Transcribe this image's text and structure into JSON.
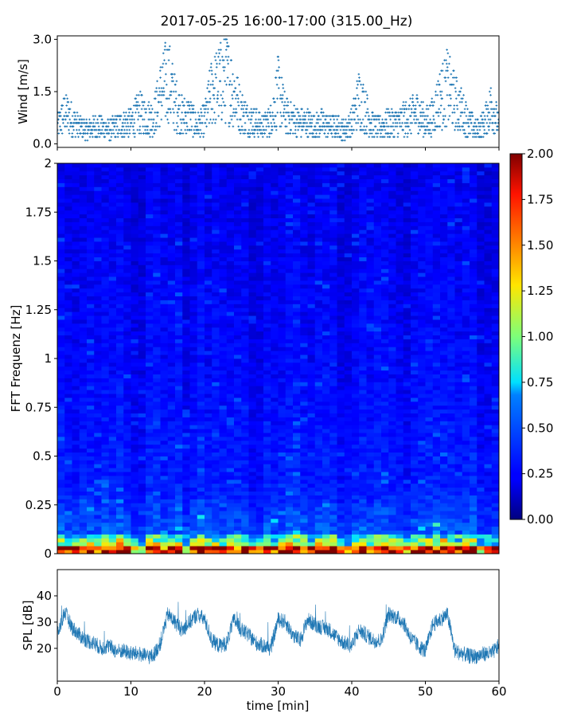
{
  "title": "2017-05-25 16:00-17:00 (315.00_Hz)",
  "xlabel": "time [min]",
  "chart_data": [
    {
      "id": "wind",
      "type": "scatter",
      "ylabel": "Wind [m/s]",
      "xlim": [
        0,
        60
      ],
      "ylim": [
        -0.1,
        3.1
      ],
      "yticks": [
        "0.0",
        "1.5",
        "3.0"
      ],
      "ytick_values": [
        0.0,
        1.5,
        3.0
      ],
      "color": "#1f77b4",
      "trend": {
        "x": [
          0,
          1,
          2,
          3,
          4,
          5,
          6,
          7,
          8,
          9,
          10,
          11,
          12,
          13,
          14,
          15,
          16,
          17,
          18,
          19,
          20,
          21,
          22,
          23,
          24,
          25,
          26,
          27,
          28,
          29,
          30,
          31,
          32,
          33,
          34,
          35,
          36,
          37,
          38,
          39,
          40,
          41,
          42,
          43,
          44,
          45,
          46,
          47,
          48,
          49,
          50,
          51,
          52,
          53,
          54,
          55,
          56,
          57,
          58,
          59,
          60
        ],
        "y": [
          0.5,
          0.9,
          0.7,
          0.5,
          0.4,
          0.5,
          0.5,
          0.4,
          0.5,
          0.6,
          0.6,
          0.9,
          0.8,
          0.7,
          1.4,
          1.9,
          1.2,
          0.8,
          0.8,
          0.5,
          0.7,
          1.5,
          1.7,
          1.9,
          1.5,
          0.9,
          0.7,
          0.6,
          0.5,
          0.7,
          1.5,
          0.8,
          0.7,
          0.6,
          0.6,
          0.5,
          0.6,
          0.5,
          0.5,
          0.4,
          0.6,
          1.3,
          0.9,
          0.5,
          0.5,
          0.6,
          0.6,
          0.7,
          0.8,
          0.9,
          0.6,
          0.8,
          1.3,
          1.6,
          1.2,
          0.9,
          0.6,
          0.4,
          0.6,
          1.1,
          0.5
        ]
      }
    },
    {
      "id": "spectrogram",
      "type": "heatmap",
      "ylabel": "FFT Frequenz [Hz]",
      "xlim": [
        0,
        60
      ],
      "ylim": [
        0,
        2
      ],
      "yticks": [
        "0",
        "0.25",
        "0.5",
        "0.75",
        "1",
        "1.25",
        "1.5",
        "1.75",
        "2"
      ],
      "ytick_values": [
        0,
        0.25,
        0.5,
        0.75,
        1,
        1.25,
        1.5,
        1.75,
        2
      ],
      "colormap": "jet",
      "colorbar": {
        "range": [
          0,
          2
        ],
        "ticks": [
          "0.00",
          "0.25",
          "0.50",
          "0.75",
          "1.00",
          "1.25",
          "1.50",
          "1.75",
          "2.00"
        ],
        "tick_values": [
          0,
          0.25,
          0.5,
          0.75,
          1,
          1.25,
          1.5,
          1.75,
          2
        ]
      }
    },
    {
      "id": "spl",
      "type": "line",
      "ylabel": "SPL [dB]",
      "xlim": [
        0,
        60
      ],
      "ylim": [
        7.5,
        50
      ],
      "yticks": [
        "20",
        "30",
        "40"
      ],
      "ytick_values": [
        20,
        30,
        40
      ],
      "xticks": [
        "0",
        "10",
        "20",
        "30",
        "40",
        "50",
        "60"
      ],
      "xtick_values": [
        0,
        10,
        20,
        30,
        40,
        50,
        60
      ],
      "color": "#1f77b4",
      "x": [
        0,
        1,
        2,
        3,
        4,
        5,
        6,
        7,
        8,
        9,
        10,
        11,
        12,
        13,
        14,
        15,
        16,
        17,
        18,
        19,
        20,
        21,
        22,
        23,
        24,
        25,
        26,
        27,
        28,
        29,
        30,
        31,
        32,
        33,
        34,
        35,
        36,
        37,
        38,
        39,
        40,
        41,
        42,
        43,
        44,
        45,
        46,
        47,
        48,
        49,
        50,
        51,
        52,
        53,
        54,
        55,
        56,
        57,
        58,
        59,
        60
      ],
      "y": [
        25,
        34,
        28,
        25,
        23,
        22,
        20,
        21,
        19,
        19,
        18,
        18,
        17,
        17,
        22,
        33,
        30,
        27,
        30,
        33,
        31,
        23,
        21,
        22,
        31,
        27,
        25,
        22,
        21,
        20,
        31,
        30,
        25,
        23,
        31,
        29,
        28,
        27,
        24,
        22,
        21,
        27,
        25,
        23,
        23,
        33,
        32,
        30,
        24,
        21,
        19,
        29,
        31,
        33,
        19,
        18,
        17,
        17,
        18,
        18,
        21
      ]
    }
  ]
}
